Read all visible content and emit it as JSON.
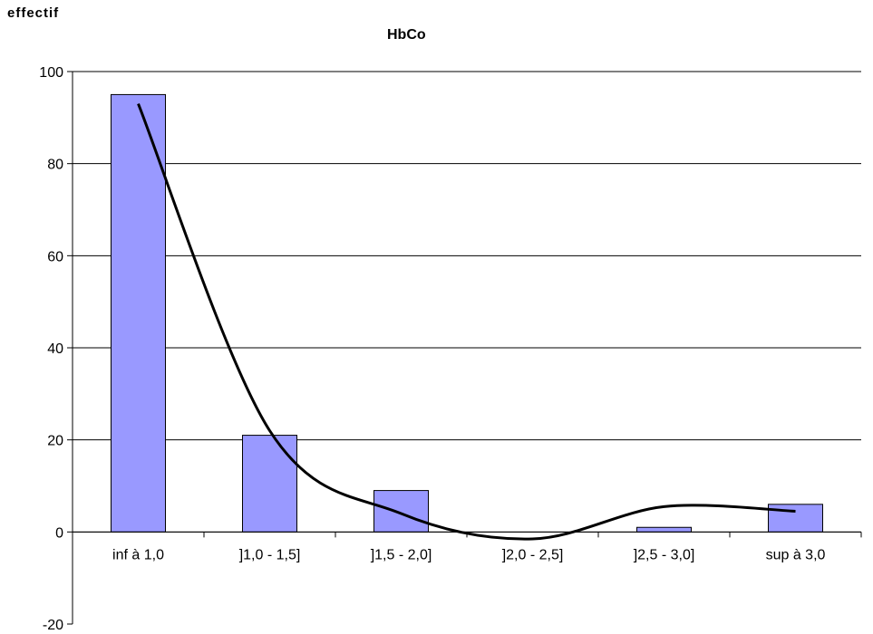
{
  "chart_data": {
    "type": "bar",
    "title": "HbCo",
    "ylabel": "effectif",
    "xlabel": "",
    "categories": [
      "inf à 1,0",
      "]1,0 - 1,5]",
      "]1,5 - 2,0]",
      "]2,0 - 2,5]",
      "]2,5 - 3,0]",
      "sup à 3,0"
    ],
    "series": [
      {
        "values": [
          95,
          21,
          9,
          0,
          1,
          6
        ],
        "color": "#9999ff"
      }
    ],
    "trendline": {
      "type": "polynomial",
      "color": "#000000",
      "points": [
        {
          "x": "inf à 1,0",
          "y": 93
        },
        {
          "x": "]1,0 - 1,5]",
          "y": 22
        },
        {
          "x": "]1,5 - 2,0]",
          "y": 4
        },
        {
          "x": "]2,0 - 2,5]",
          "y": -1.5
        },
        {
          "x": "]2,5 - 3,0]",
          "y": 5.5
        },
        {
          "x": "sup à 3,0",
          "y": 4.5
        }
      ]
    },
    "ylim": [
      -20,
      100
    ],
    "yticks": [
      -20,
      0,
      20,
      40,
      60,
      80,
      100
    ],
    "grid": true,
    "legend": "none"
  }
}
